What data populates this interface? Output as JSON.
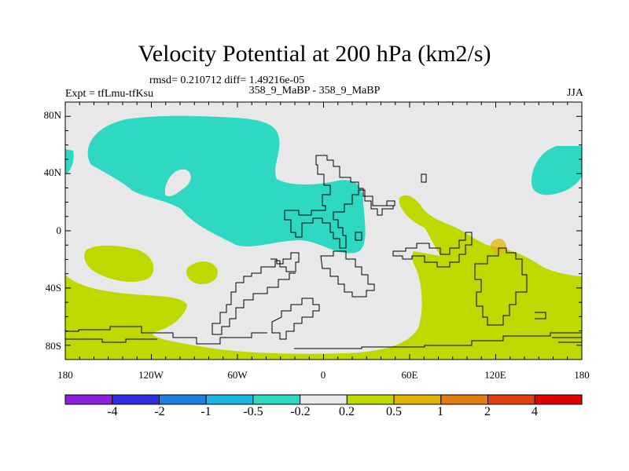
{
  "header": {
    "title": "Velocity Potential at 200 hPa (km2/s)",
    "stats": "rmsd= 0.210712  diff= 1.49216e-05",
    "expt": "Expt = tfLmu-tfKsu",
    "subtitle": "358_9_MaBP - 358_9_MaBP",
    "season": "JJA"
  },
  "axes": {
    "lat_labels": [
      "80N",
      "40N",
      "0",
      "40S",
      "80S"
    ],
    "lon_labels": [
      "180",
      "120W",
      "60W",
      "0",
      "60E",
      "120E",
      "180"
    ]
  },
  "colorbar": {
    "labels": [
      "-4",
      "-2",
      "-1",
      "-0.5",
      "-0.2",
      "0.2",
      "0.5",
      "1",
      "2",
      "4"
    ],
    "colors": [
      "#8a1fe0",
      "#2d2fe0",
      "#1e7fe0",
      "#18b6e0",
      "#2ed8c2",
      "#e8e8e8",
      "#bfd800",
      "#e0b400",
      "#e07d10",
      "#e04010",
      "#e00000"
    ]
  },
  "map_colors": {
    "background": "#e8e8e8",
    "negative": "#2ed8c2",
    "positive": "#bfd800",
    "orange": "#e0b400"
  }
}
